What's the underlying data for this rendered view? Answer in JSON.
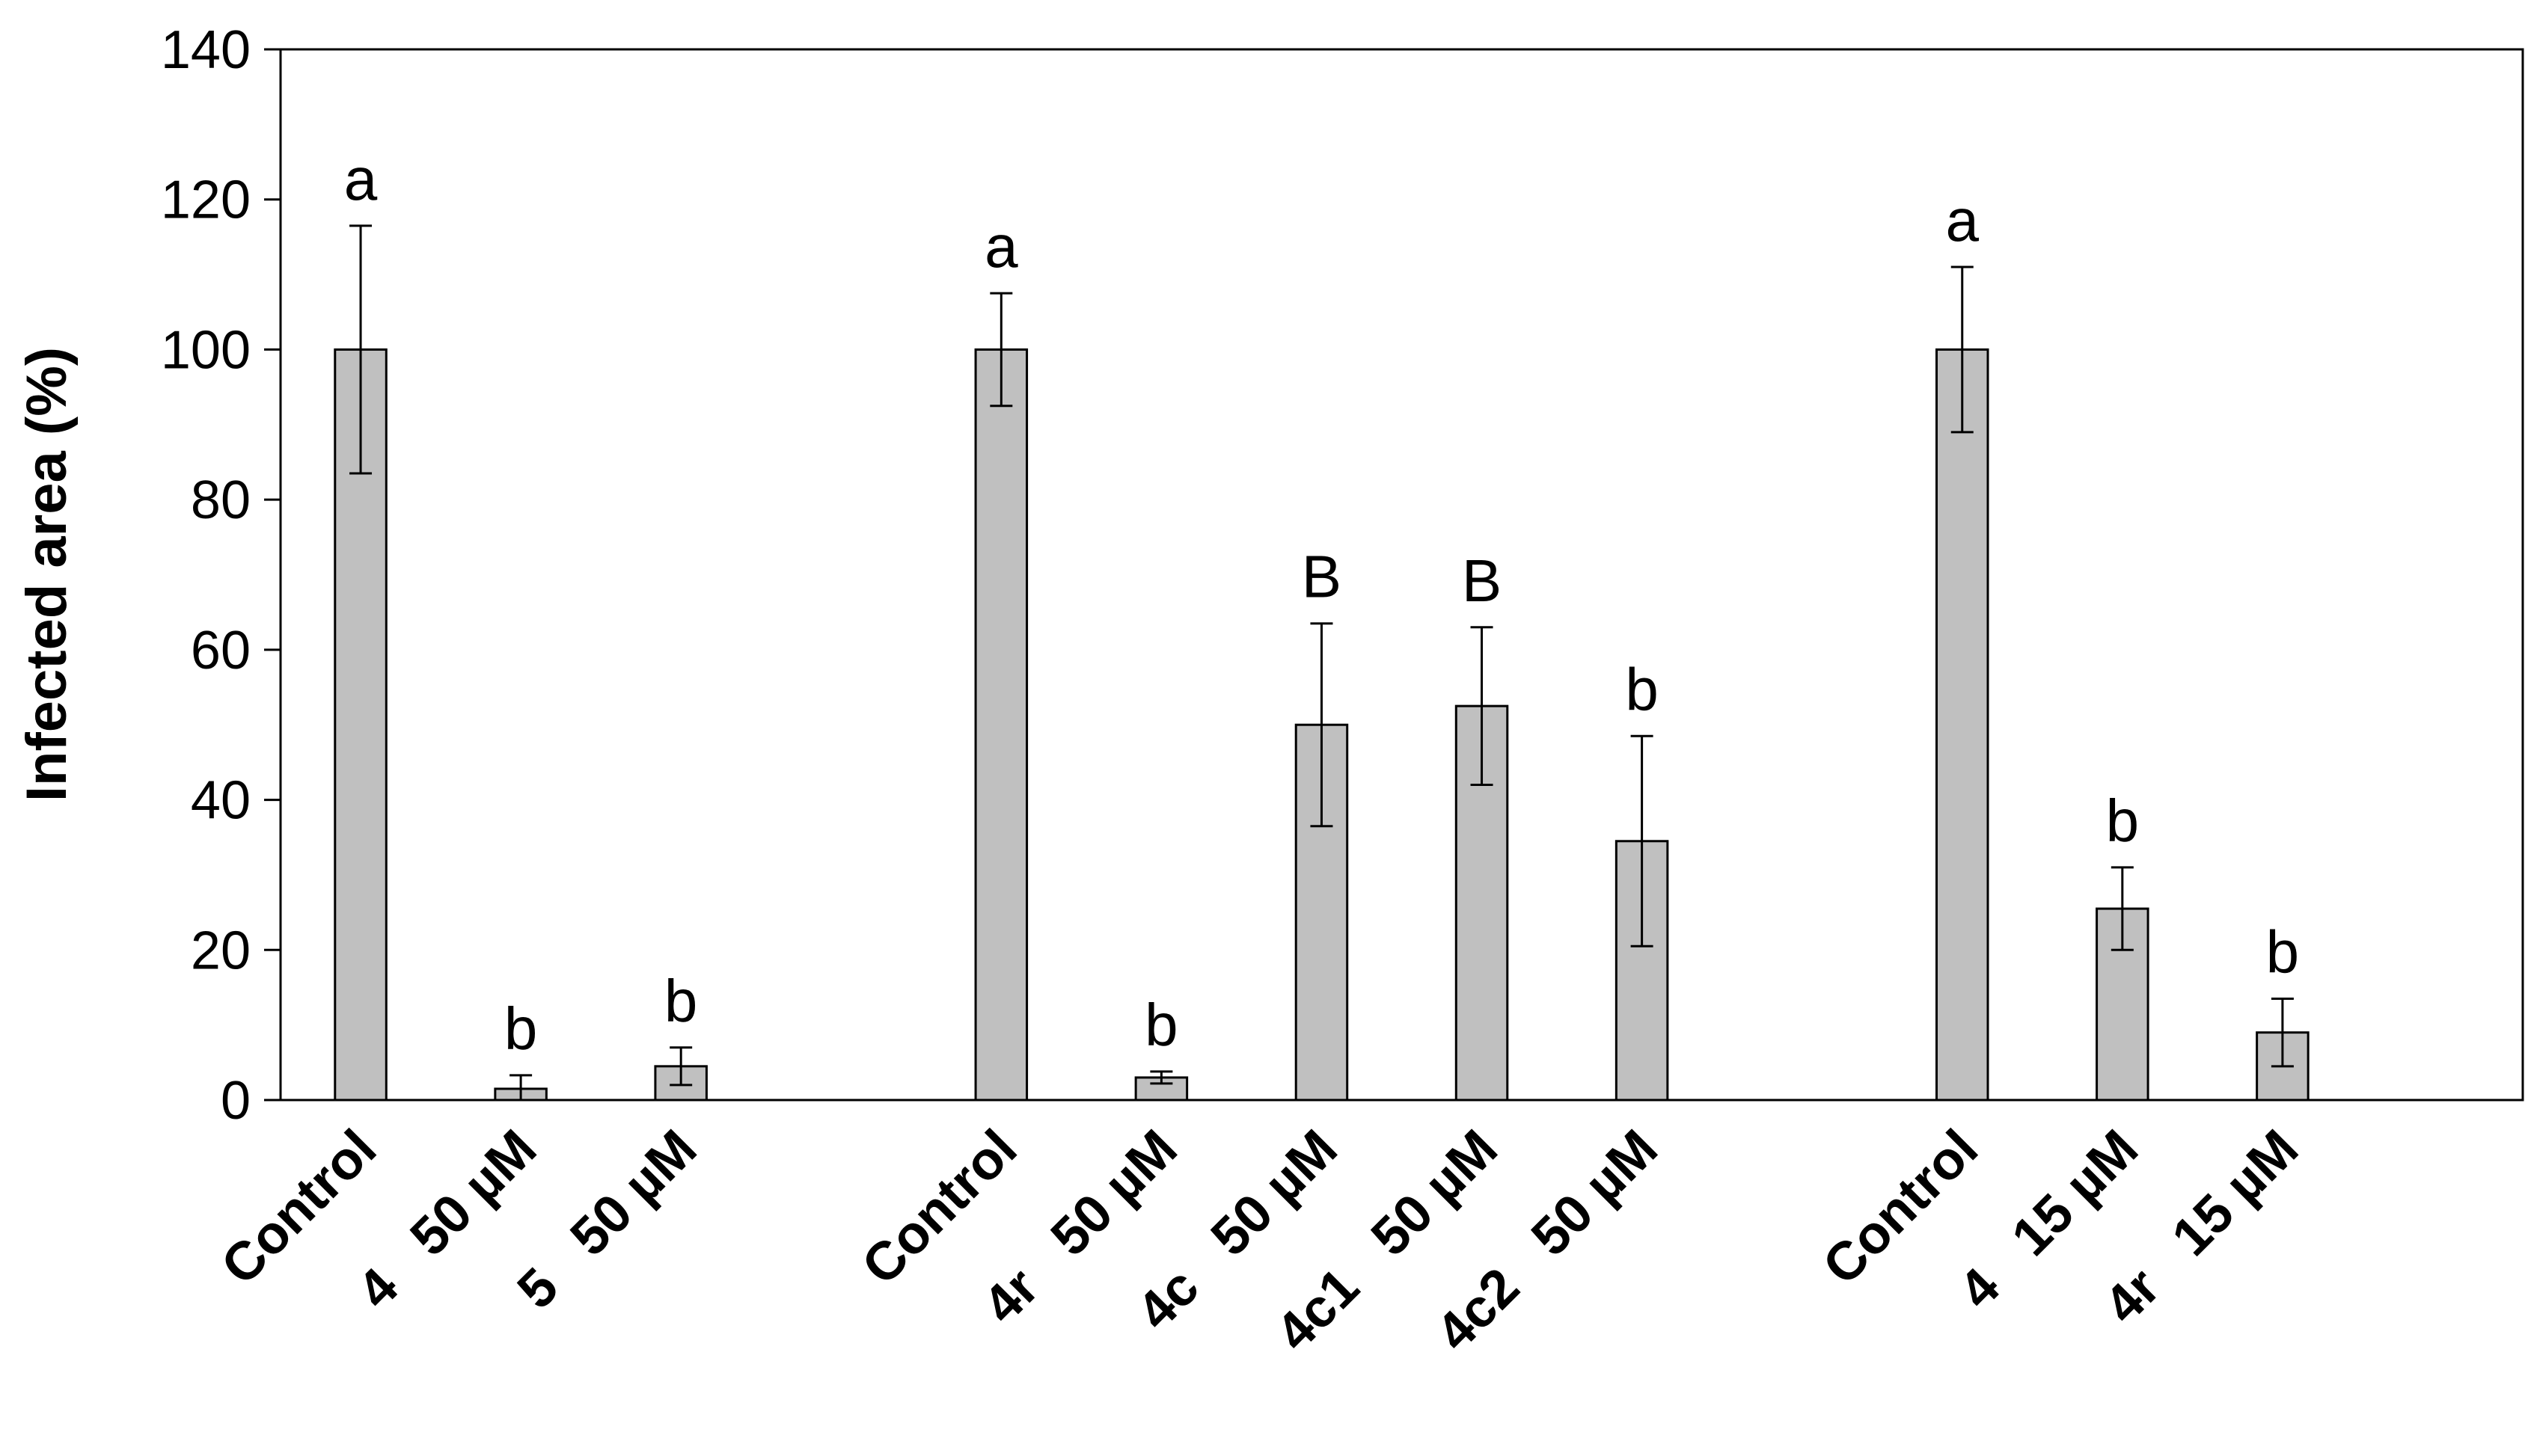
{
  "chart_data": {
    "type": "bar",
    "title": "",
    "xlabel": "",
    "ylabel": "Infected area (%)",
    "ylim": [
      0,
      140
    ],
    "yticks": [
      0,
      20,
      40,
      60,
      80,
      100,
      120,
      140
    ],
    "grid": false,
    "legend": "none",
    "bar_color": "#c0c0c0",
    "bar_stroke": "#000000",
    "groups": [
      {
        "bars": [
          {
            "label": "Control",
            "value": 100,
            "error": 16.5,
            "significance": "a"
          },
          {
            "label": "4   50 µM",
            "value": 1.5,
            "error": 1.8,
            "significance": "b"
          },
          {
            "label": "5   50 µM",
            "value": 4.5,
            "error": 2.5,
            "significance": "b"
          }
        ]
      },
      {
        "bars": [
          {
            "label": "Control",
            "value": 100,
            "error": 7.5,
            "significance": "a"
          },
          {
            "label": "4r   50 µM",
            "value": 3,
            "error": 0.8,
            "significance": "b"
          },
          {
            "label": "4c   50 µM",
            "value": 50,
            "error": 13.5,
            "significance": "B"
          },
          {
            "label": "4c1   50 µM",
            "value": 52.5,
            "error": 10.5,
            "significance": "B"
          },
          {
            "label": "4c2   50 µM",
            "value": 34.5,
            "error": 14,
            "significance": "b"
          }
        ]
      },
      {
        "bars": [
          {
            "label": "Control",
            "value": 100,
            "error": 11,
            "significance": "a"
          },
          {
            "label": "4   15 µM",
            "value": 25.5,
            "error": 5.5,
            "significance": "b"
          },
          {
            "label": "4r   15 µM",
            "value": 9,
            "error": 4.5,
            "significance": "b"
          }
        ]
      }
    ]
  }
}
